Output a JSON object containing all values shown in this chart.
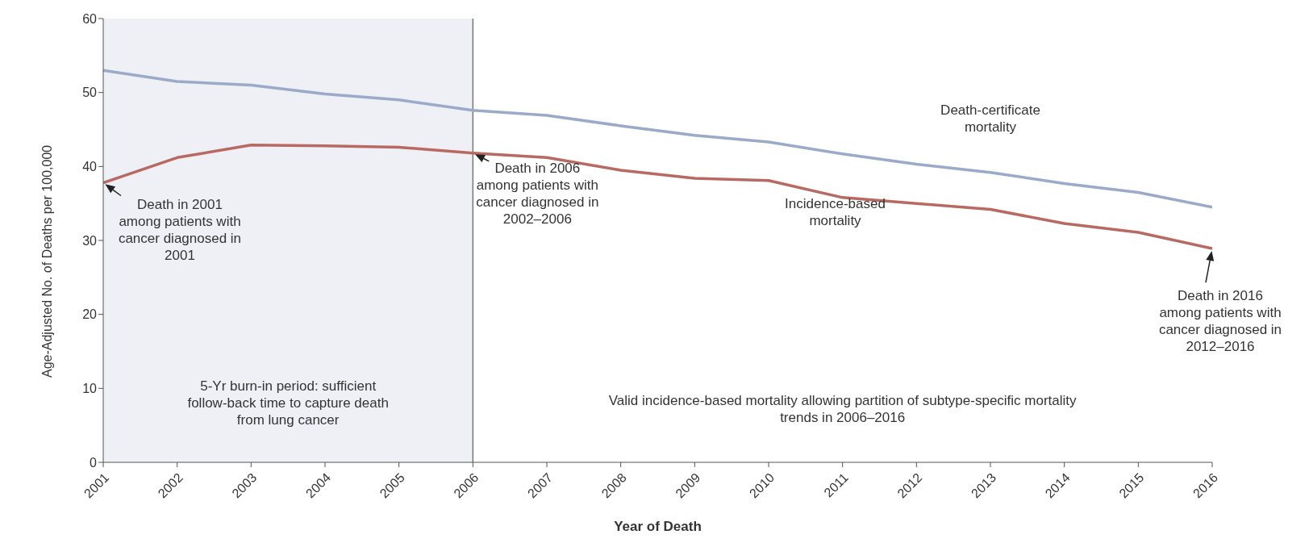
{
  "chart_data": {
    "type": "line",
    "xlabel": "Year of Death",
    "ylabel": "Age-Adjusted No. of Deaths per 100,000",
    "x": [
      2001,
      2002,
      2003,
      2004,
      2005,
      2006,
      2007,
      2008,
      2009,
      2010,
      2011,
      2012,
      2013,
      2014,
      2015,
      2016
    ],
    "xlim": [
      2001,
      2016
    ],
    "xticks": [
      2001,
      2002,
      2003,
      2004,
      2005,
      2006,
      2007,
      2008,
      2009,
      2010,
      2011,
      2012,
      2013,
      2014,
      2015,
      2016
    ],
    "ylim": [
      0,
      60
    ],
    "yticks": [
      0,
      10,
      20,
      30,
      40,
      50,
      60
    ],
    "marker": "none",
    "line_style": "solid",
    "series": [
      {
        "name": "Death-certificate mortality",
        "color": "#9aaac8",
        "values": [
          53.0,
          51.5,
          51.0,
          49.8,
          49.0,
          47.6,
          46.9,
          45.5,
          44.2,
          43.3,
          41.7,
          40.3,
          39.2,
          37.7,
          36.5,
          34.5
        ]
      },
      {
        "name": "Incidence-based mortality",
        "color": "#b86a62",
        "values": [
          37.8,
          41.2,
          42.9,
          42.8,
          42.6,
          41.8,
          41.2,
          39.5,
          38.4,
          38.1,
          35.8,
          35.0,
          34.2,
          32.3,
          31.1,
          28.9
        ]
      }
    ],
    "bands": [
      {
        "axis": "x",
        "from": 2001,
        "to": 2006,
        "label": "5-Yr burn-in period: sufficient follow-back time to capture death from lung cancer",
        "color": "#eef0f5"
      }
    ],
    "ref_lines": [
      {
        "axis": "x",
        "value": 2006,
        "label": null,
        "color": "#777777"
      }
    ],
    "annotations": [
      {
        "text": "Death in 2001 among patients with cancer diagnosed in 2001",
        "x": 2001,
        "y": 37.8
      },
      {
        "text": "Death in 2006 among patients with cancer diagnosed in 2002–2006",
        "x": 2006,
        "y": 41.8
      },
      {
        "text": "Death in 2016 among patients with cancer diagnosed in 2012–2016",
        "x": 2016,
        "y": 28.9
      },
      "Valid incidence-based mortality allowing partition of subtype-specific mortality trends in 2006–2016"
    ]
  }
}
